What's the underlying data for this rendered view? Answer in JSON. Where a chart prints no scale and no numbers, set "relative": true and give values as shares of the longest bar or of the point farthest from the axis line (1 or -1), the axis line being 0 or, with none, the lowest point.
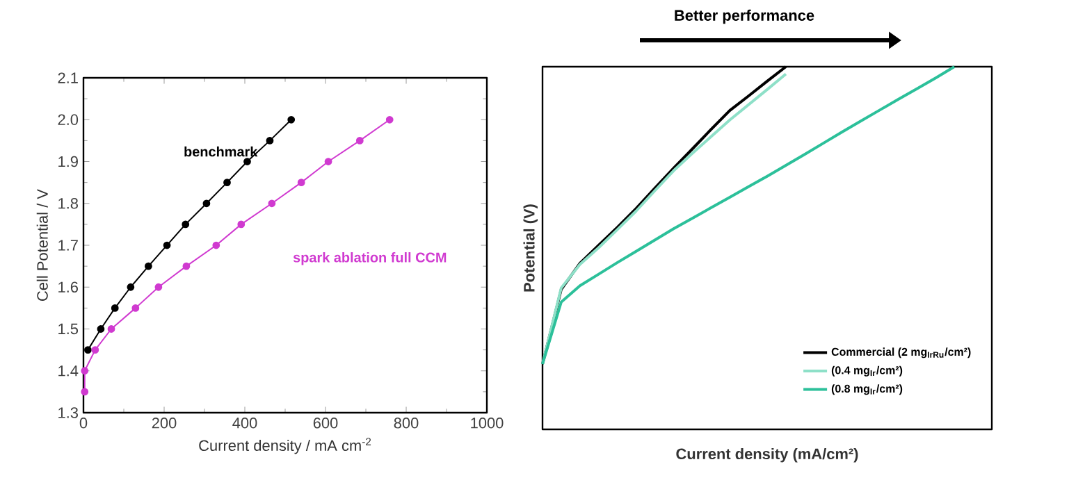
{
  "chart_data": [
    {
      "type": "line",
      "xlabel": "Current density / mA cm$^{-2}$",
      "ylabel": "Cell Potential / V",
      "xlim": [
        0,
        1000
      ],
      "ylim": [
        1.3,
        2.1
      ],
      "xticks": [
        0,
        200,
        400,
        600,
        800,
        1000
      ],
      "yticks": [
        1.3,
        1.4,
        1.5,
        1.6,
        1.7,
        1.8,
        1.9,
        {
          "value": 2.0,
          "label": "2.0"
        },
        2.1
      ],
      "marker": "circle",
      "legend": false,
      "grid": false,
      "series": [
        {
          "name": "benchmark",
          "color": "#000000",
          "x": [
            11,
            43,
            78,
            117,
            161,
            207,
            253,
            305,
            356,
            406,
            462,
            515
          ],
          "values": [
            1.45,
            1.5,
            1.55,
            1.6,
            1.65,
            1.7,
            1.75,
            1.8,
            1.85,
            1.9,
            1.95,
            2.0
          ]
        },
        {
          "name": "spark ablation full CCM",
          "color": "#d03ad0",
          "x": [
            3,
            3,
            29,
            69,
            129,
            186,
            255,
            329,
            391,
            467,
            540,
            607,
            685,
            759
          ],
          "values": [
            1.35,
            1.4,
            1.45,
            1.5,
            1.55,
            1.6,
            1.65,
            1.7,
            1.75,
            1.8,
            1.85,
            1.9,
            1.95,
            2.0
          ]
        }
      ]
    },
    {
      "type": "line",
      "xlabel": "Current density (mA/cm²)",
      "ylabel": "Potential (V)",
      "relative": true,
      "categories": [
        null,
        null,
        null,
        null,
        null,
        null,
        null,
        null,
        null,
        null,
        null,
        null,
        null,
        null,
        null,
        null,
        null,
        null,
        null,
        null,
        null,
        null,
        null
      ],
      "legend": "bottom right",
      "marker": "none",
      "annotations": [
        "Better performance"
      ],
      "series": [
        {
          "name": "Commercial (2 mg$_{IrRu}$/cm²)",
          "color": "#000000",
          "values": [
            0.18,
            0.386,
            0.458,
            0.508,
            0.557,
            0.609,
            0.665,
            0.72,
            0.773,
            0.827,
            0.879,
            0.919,
            0.96,
            1.0,
            null,
            null,
            null,
            null,
            null,
            null,
            null,
            null,
            null
          ]
        },
        {
          "name": "(0.4 mg$_{Ir}$/cm²)",
          "color": "#8ee0c8",
          "values": [
            0.18,
            0.39,
            0.455,
            0.501,
            0.551,
            0.602,
            0.658,
            0.713,
            0.761,
            0.807,
            0.853,
            0.895,
            0.937,
            0.98,
            null,
            null,
            null,
            null,
            null,
            null,
            null,
            null,
            null
          ]
        },
        {
          "name": "(0.8 mg$_{Ir}$/cm²)",
          "color": "#2cc09a",
          "values": [
            0.18,
            0.351,
            0.396,
            0.428,
            0.46,
            0.491,
            0.522,
            0.553,
            0.582,
            0.611,
            0.64,
            0.669,
            0.698,
            0.728,
            0.758,
            0.789,
            0.82,
            0.85,
            0.88,
            0.91,
            0.939,
            0.969,
            1.0
          ]
        }
      ]
    }
  ]
}
